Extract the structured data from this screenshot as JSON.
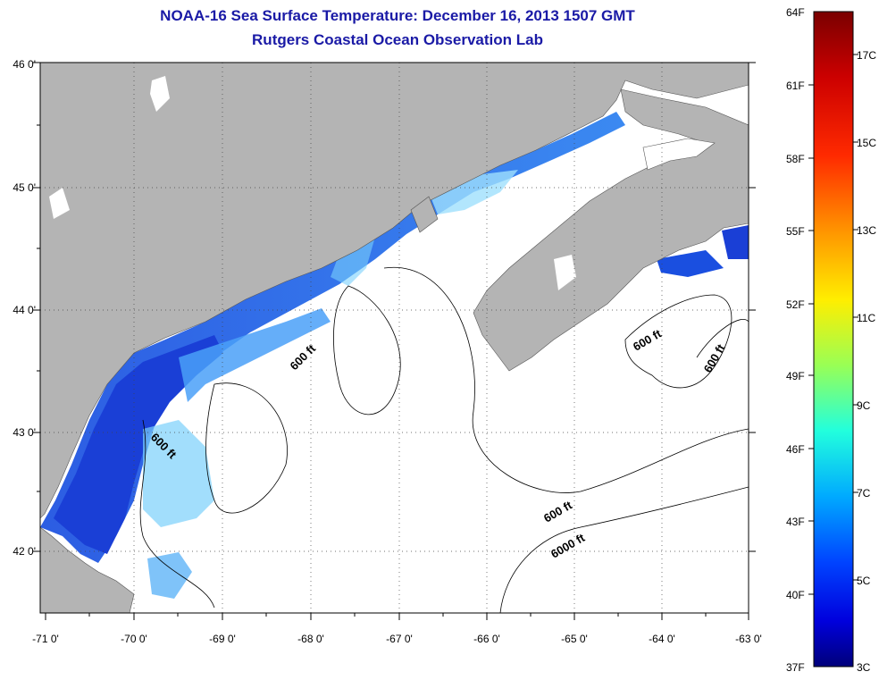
{
  "title": {
    "line1": "NOAA-16 Sea Surface Temperature:  December 16, 2013 1507 GMT",
    "line2": "Rutgers Coastal Ocean Observation Lab"
  },
  "lat_ticks": [
    "46 0'",
    "45 0'",
    "44 0'",
    "43 0'",
    "42 0'"
  ],
  "lon_ticks": [
    "-71 0'",
    "-70 0'",
    "-69 0'",
    "-68 0'",
    "-67 0'",
    "-66 0'",
    "-65 0'",
    "-64 0'",
    "-63 0'"
  ],
  "map_bounds": {
    "lon": [
      -71,
      -63
    ],
    "lat": [
      41.5,
      46
    ]
  },
  "contour_labels": [
    "600 ft",
    "600 ft",
    "600 ft",
    "600 ft",
    "600 ft",
    "6000 ft"
  ],
  "colorbar": {
    "fahrenheit_labels": [
      "64F",
      "61F",
      "58F",
      "55F",
      "52F",
      "49F",
      "46F",
      "43F",
      "40F",
      "37F"
    ],
    "celsius_labels": [
      "17C",
      "15C",
      "13C",
      "11C",
      "9C",
      "7C",
      "5C",
      "3C"
    ]
  },
  "colors": {
    "land": "#b4b4b4",
    "title": "#1a1aa6",
    "ocean_no_data": "#ffffff"
  }
}
